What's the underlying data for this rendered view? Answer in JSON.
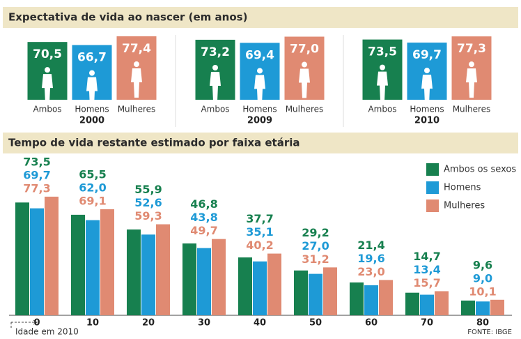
{
  "chart_data": [
    {
      "type": "bar",
      "title": "Expectativa de vida ao nascer (em anos)",
      "categories": [
        "2000",
        "2009",
        "2010"
      ],
      "series": [
        {
          "name": "Ambos",
          "color": "#17804f",
          "values": [
            70.5,
            73.2,
            73.5
          ],
          "value_labels": [
            "70,5",
            "73,2",
            "73,5"
          ]
        },
        {
          "name": "Homens",
          "color": "#1e9ad6",
          "values": [
            66.7,
            69.4,
            69.7
          ],
          "value_labels": [
            "66,7",
            "69,4",
            "69,7"
          ]
        },
        {
          "name": "Mulheres",
          "color": "#e08a72",
          "values": [
            77.4,
            77.0,
            77.3
          ],
          "value_labels": [
            "77,4",
            "77,0",
            "77,3"
          ]
        }
      ],
      "ylim": [
        0,
        80
      ]
    },
    {
      "type": "bar",
      "title": "Tempo de vida restante estimado por faixa etária",
      "x_label": "Idade em 2010",
      "source": "FONTE: IBGE",
      "categories": [
        "0",
        "10",
        "20",
        "30",
        "40",
        "50",
        "60",
        "70",
        "80"
      ],
      "series": [
        {
          "name": "Ambos os sexos",
          "color": "#17804f",
          "values": [
            73.5,
            65.5,
            55.9,
            46.8,
            37.7,
            29.2,
            21.4,
            14.7,
            9.6
          ],
          "value_labels": [
            "73,5",
            "65,5",
            "55,9",
            "46,8",
            "37,7",
            "29,2",
            "21,4",
            "14,7",
            "9,6"
          ]
        },
        {
          "name": "Homens",
          "color": "#1e9ad6",
          "values": [
            69.7,
            62.0,
            52.6,
            43.8,
            35.1,
            27.0,
            19.6,
            13.4,
            9.0
          ],
          "value_labels": [
            "69,7",
            "62,0",
            "52,6",
            "43,8",
            "35,1",
            "27,0",
            "19,6",
            "13,4",
            "9,0"
          ]
        },
        {
          "name": "Mulheres",
          "color": "#e08a72",
          "values": [
            77.3,
            69.1,
            59.3,
            49.7,
            40.2,
            31.2,
            23.0,
            15.7,
            10.1
          ],
          "value_labels": [
            "77,3",
            "69,1",
            "59,3",
            "49,7",
            "40,2",
            "31,2",
            "23,0",
            "15,7",
            "10,1"
          ]
        }
      ],
      "ylim": [
        0,
        100
      ],
      "legend": "top-right"
    }
  ]
}
